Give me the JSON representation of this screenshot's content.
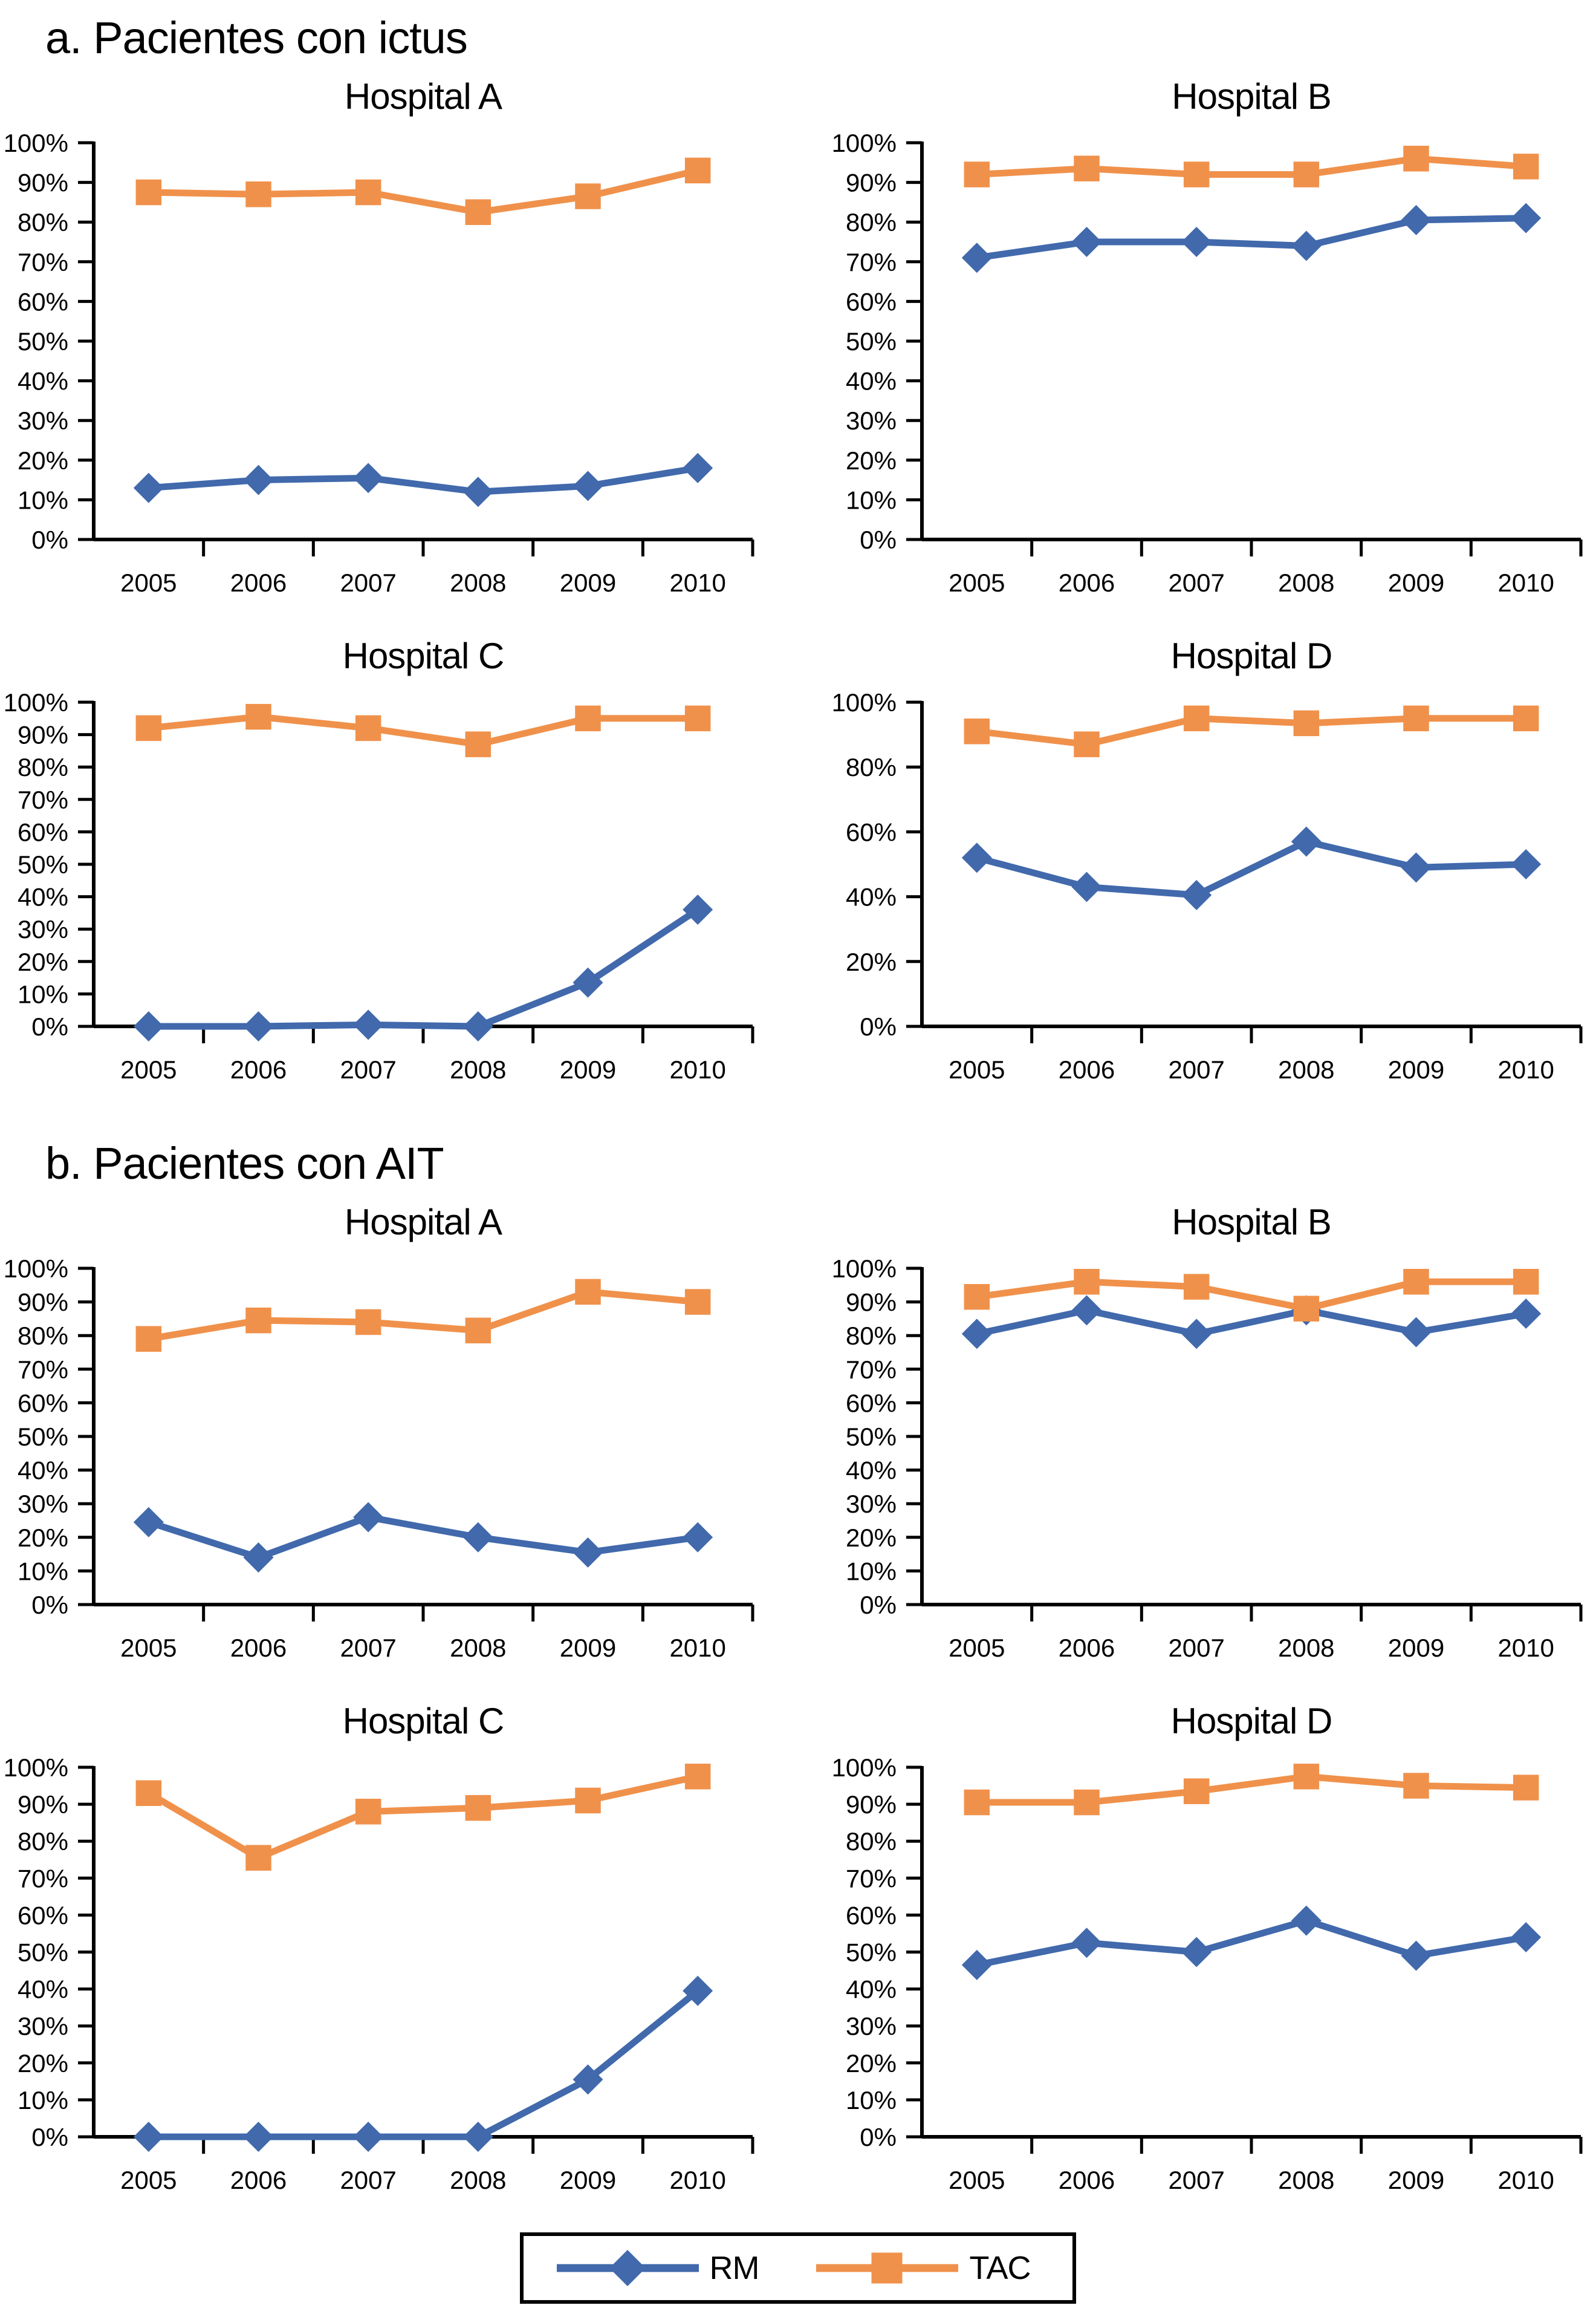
{
  "sections": [
    {
      "label": "a. Pacientes con ictus"
    },
    {
      "label": "b. Pacientes con AIT"
    }
  ],
  "legend": {
    "items": [
      {
        "label": "RM",
        "marker": "diamond",
        "color": "#4169AC"
      },
      {
        "label": "TAC",
        "marker": "square",
        "color": "#F0914B"
      }
    ]
  },
  "chart_data": [
    {
      "type": "line",
      "section": "a. Pacientes con ictus",
      "title": "Hospital A",
      "x": [
        "2005",
        "2006",
        "2007",
        "2008",
        "2009",
        "2010"
      ],
      "ylim": [
        0,
        100
      ],
      "y_tick_step": 10,
      "y_unit": "%",
      "grid": false,
      "series": [
        {
          "name": "RM",
          "marker": "diamond",
          "color": "#4169AC",
          "values": [
            13,
            15,
            15.5,
            12,
            13.5,
            18
          ]
        },
        {
          "name": "TAC",
          "marker": "square",
          "color": "#F0914B",
          "values": [
            87.5,
            87,
            87.5,
            82.5,
            86.5,
            93
          ]
        }
      ]
    },
    {
      "type": "line",
      "section": "a. Pacientes con ictus",
      "title": "Hospital B",
      "x": [
        "2005",
        "2006",
        "2007",
        "2008",
        "2009",
        "2010"
      ],
      "ylim": [
        0,
        100
      ],
      "y_tick_step": 10,
      "y_unit": "%",
      "grid": false,
      "series": [
        {
          "name": "RM",
          "marker": "diamond",
          "color": "#4169AC",
          "values": [
            71,
            75,
            75,
            74,
            80.5,
            81
          ]
        },
        {
          "name": "TAC",
          "marker": "square",
          "color": "#F0914B",
          "values": [
            92,
            93.5,
            92,
            92,
            96,
            94
          ]
        }
      ]
    },
    {
      "type": "line",
      "section": "a. Pacientes con ictus",
      "title": "Hospital C",
      "x": [
        "2005",
        "2006",
        "2007",
        "2008",
        "2009",
        "2010"
      ],
      "ylim": [
        0,
        100
      ],
      "y_tick_step": 10,
      "y_unit": "%",
      "grid": false,
      "series": [
        {
          "name": "RM",
          "marker": "diamond",
          "color": "#4169AC",
          "values": [
            0,
            0,
            0.5,
            0,
            13.5,
            36
          ]
        },
        {
          "name": "TAC",
          "marker": "square",
          "color": "#F0914B",
          "values": [
            92,
            95.5,
            92,
            87,
            95,
            95
          ]
        }
      ]
    },
    {
      "type": "line",
      "section": "a. Pacientes con ictus",
      "title": "Hospital D",
      "x": [
        "2005",
        "2006",
        "2007",
        "2008",
        "2009",
        "2010"
      ],
      "ylim": [
        0,
        100
      ],
      "y_tick_step": 20,
      "y_unit": "%",
      "grid": false,
      "series": [
        {
          "name": "RM",
          "marker": "diamond",
          "color": "#4169AC",
          "values": [
            52,
            43,
            40.5,
            57,
            49,
            50
          ]
        },
        {
          "name": "TAC",
          "marker": "square",
          "color": "#F0914B",
          "values": [
            91,
            87,
            95,
            93.5,
            95,
            95
          ]
        }
      ]
    },
    {
      "type": "line",
      "section": "b. Pacientes con AIT",
      "title": "Hospital A",
      "x": [
        "2005",
        "2006",
        "2007",
        "2008",
        "2009",
        "2010"
      ],
      "ylim": [
        0,
        100
      ],
      "y_tick_step": 10,
      "y_unit": "%",
      "grid": false,
      "series": [
        {
          "name": "RM",
          "marker": "diamond",
          "color": "#4169AC",
          "values": [
            24.5,
            14,
            26,
            20,
            15.5,
            20
          ]
        },
        {
          "name": "TAC",
          "marker": "square",
          "color": "#F0914B",
          "values": [
            79,
            84.5,
            84,
            81.5,
            93,
            90
          ]
        }
      ]
    },
    {
      "type": "line",
      "section": "b. Pacientes con AIT",
      "title": "Hospital B",
      "x": [
        "2005",
        "2006",
        "2007",
        "2008",
        "2009",
        "2010"
      ],
      "ylim": [
        0,
        100
      ],
      "y_tick_step": 10,
      "y_unit": "%",
      "grid": false,
      "series": [
        {
          "name": "RM",
          "marker": "diamond",
          "color": "#4169AC",
          "values": [
            80.5,
            87.5,
            80.5,
            87.5,
            81,
            86.5
          ]
        },
        {
          "name": "TAC",
          "marker": "square",
          "color": "#F0914B",
          "values": [
            91.5,
            96,
            94.5,
            88,
            96,
            96
          ]
        }
      ]
    },
    {
      "type": "line",
      "section": "b. Pacientes con AIT",
      "title": "Hospital C",
      "x": [
        "2005",
        "2006",
        "2007",
        "2008",
        "2009",
        "2010"
      ],
      "ylim": [
        0,
        100
      ],
      "y_tick_step": 10,
      "y_unit": "%",
      "grid": false,
      "series": [
        {
          "name": "RM",
          "marker": "diamond",
          "color": "#4169AC",
          "values": [
            0,
            0,
            0,
            0,
            15.5,
            39.5
          ]
        },
        {
          "name": "TAC",
          "marker": "square",
          "color": "#F0914B",
          "values": [
            93,
            75.5,
            88,
            89,
            91,
            97.5
          ]
        }
      ]
    },
    {
      "type": "line",
      "section": "b. Pacientes con AIT",
      "title": "Hospital D",
      "x": [
        "2005",
        "2006",
        "2007",
        "2008",
        "2009",
        "2010"
      ],
      "ylim": [
        0,
        100
      ],
      "y_tick_step": 10,
      "y_unit": "%",
      "grid": false,
      "series": [
        {
          "name": "RM",
          "marker": "diamond",
          "color": "#4169AC",
          "values": [
            46.5,
            52.5,
            50,
            58.5,
            49,
            54
          ]
        },
        {
          "name": "TAC",
          "marker": "square",
          "color": "#F0914B",
          "values": [
            90.5,
            90.5,
            93.5,
            97.5,
            95,
            94.5
          ]
        }
      ]
    }
  ]
}
